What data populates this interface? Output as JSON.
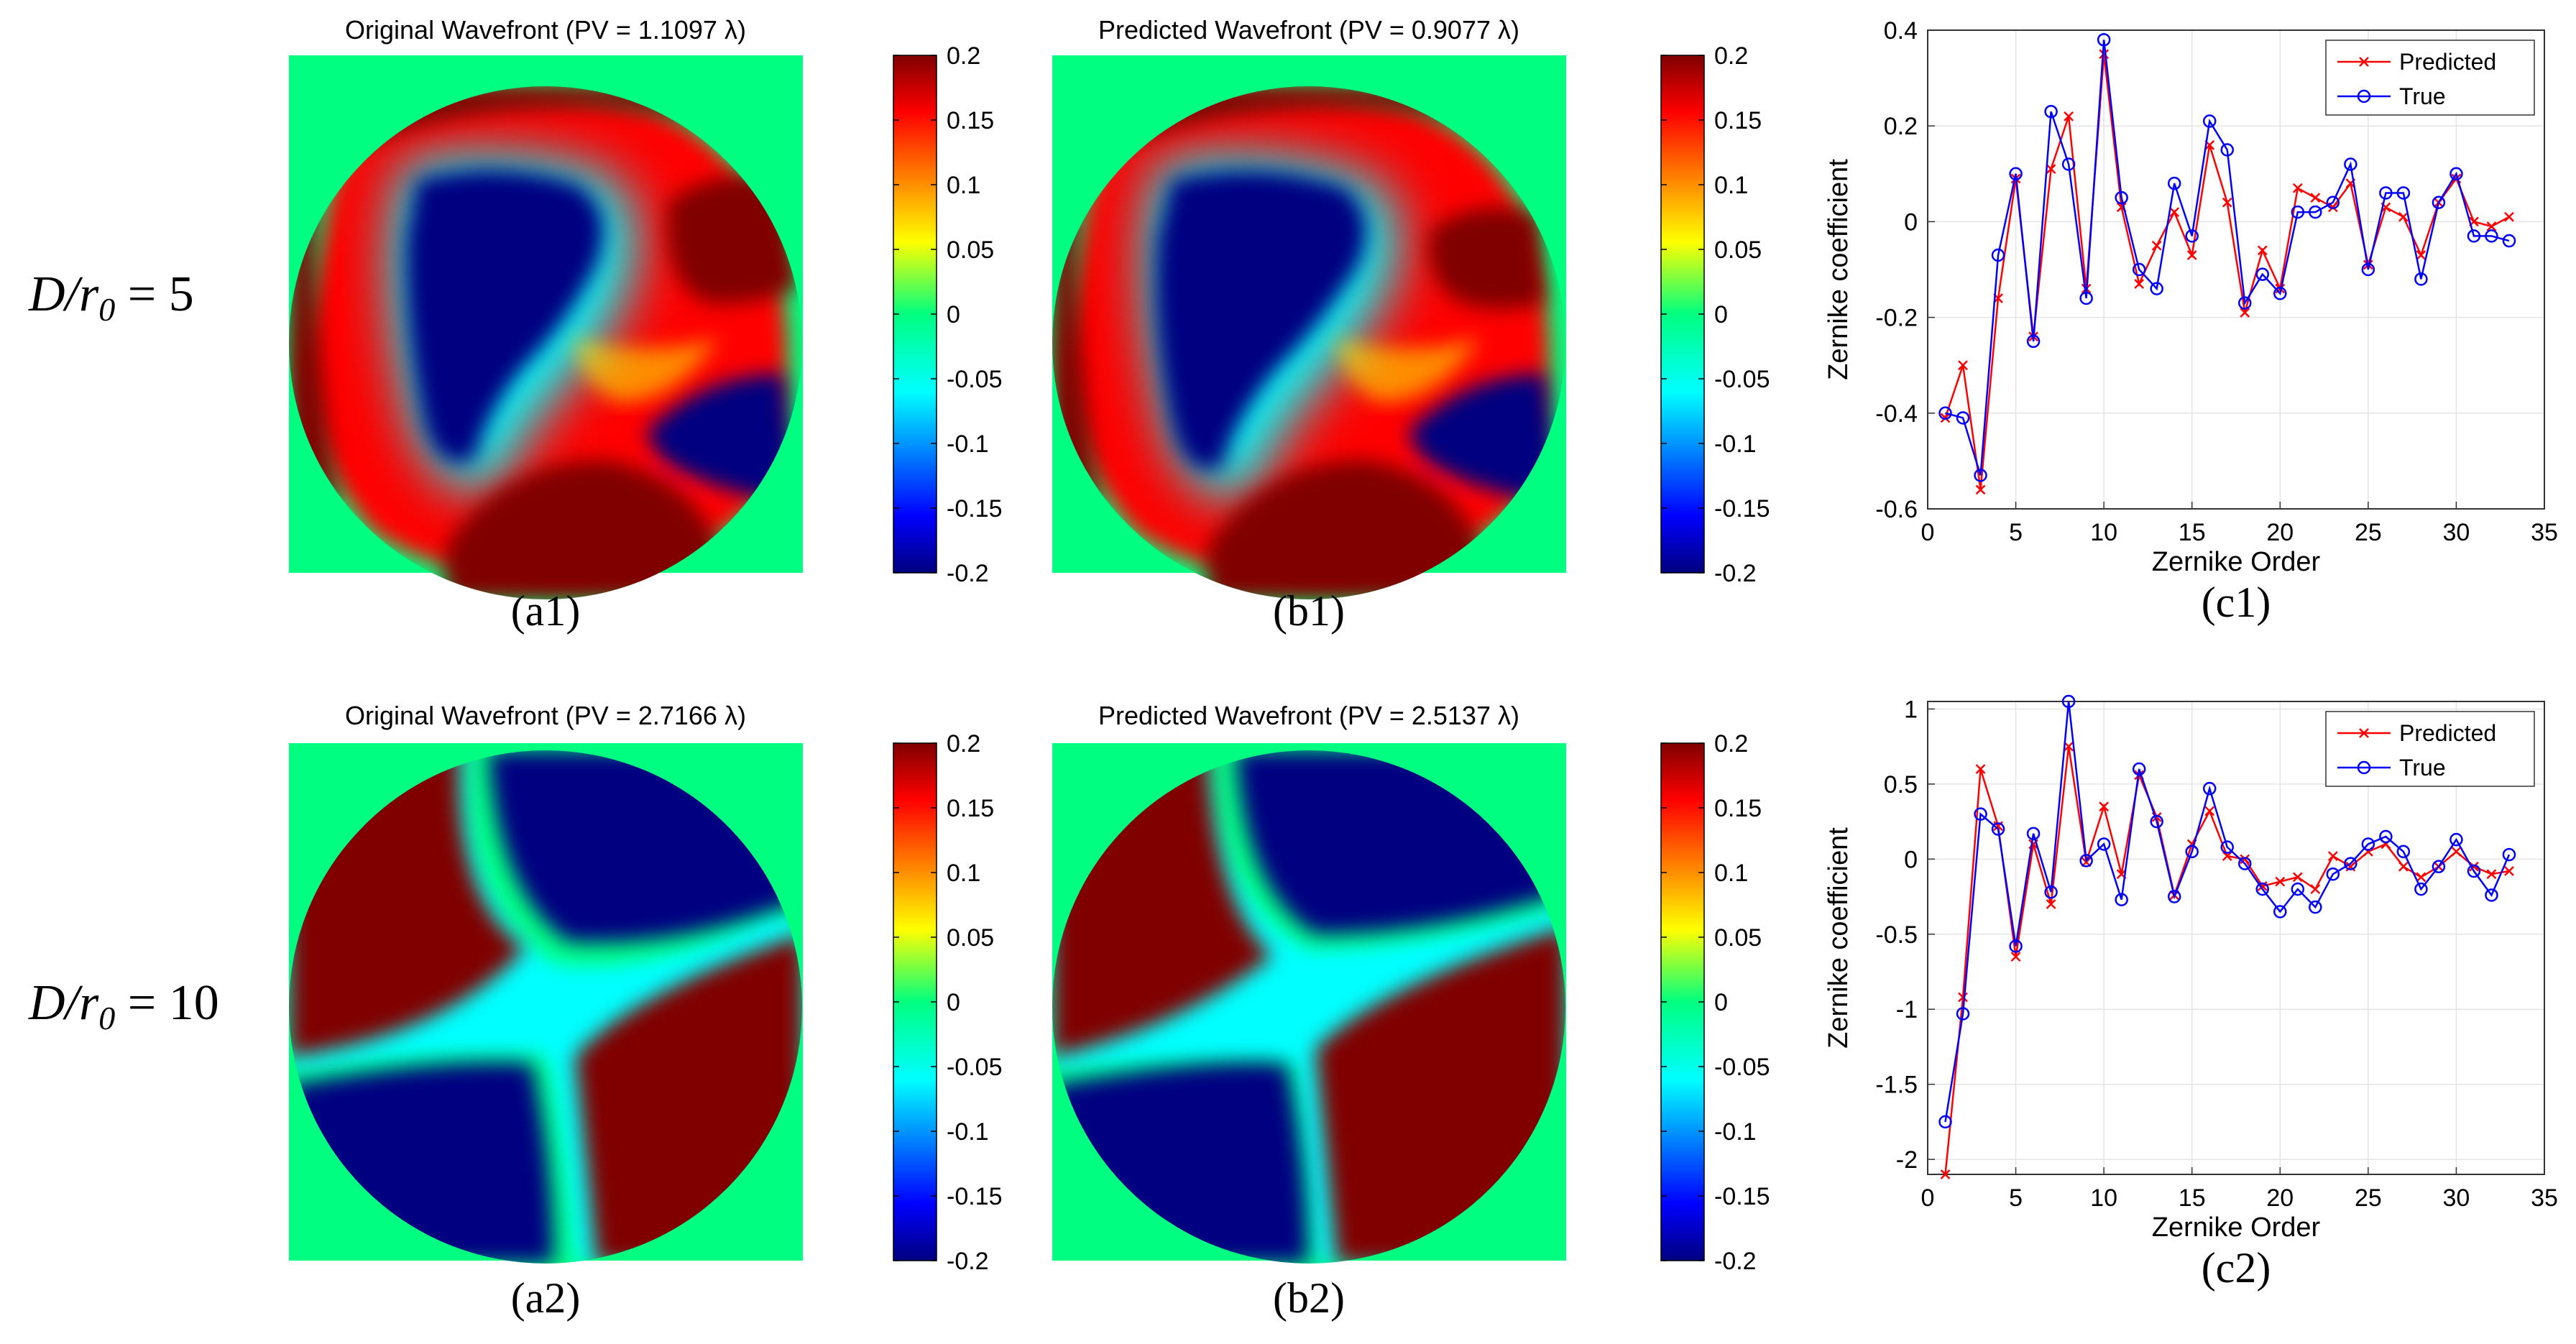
{
  "colors": {
    "predicted": "#ff0000",
    "true": "#0000ff",
    "pupil_background": "#00ff80",
    "colormap": "jet"
  },
  "row_labels": [
    {
      "prefix": "D/",
      "var": "r",
      "sub": "0",
      "suffix": " = 5"
    },
    {
      "prefix": "D/",
      "var": "r",
      "sub": "0",
      "suffix": " = 10"
    }
  ],
  "wavefront_panels": [
    {
      "id": "a1",
      "title": "Original Wavefront (PV = 1.1097 λ)",
      "caption": "(a1)"
    },
    {
      "id": "b1",
      "title": "Predicted Wavefront (PV = 0.9077 λ)",
      "caption": "(b1)"
    },
    {
      "id": "a2",
      "title": "Original Wavefront (PV = 2.7166 λ)",
      "caption": "(a2)"
    },
    {
      "id": "b2",
      "title": "Predicted Wavefront (PV = 2.5137 λ)",
      "caption": "(b2)"
    }
  ],
  "colorbar": {
    "ticks": [
      "0.2",
      "0.15",
      "0.1",
      "0.05",
      "0",
      "-0.05",
      "-0.1",
      "-0.15",
      "-0.2"
    ],
    "range": [
      -0.2,
      0.2
    ]
  },
  "chart_data": [
    {
      "id": "c1",
      "type": "line",
      "caption": "(c1)",
      "xlabel": "Zernike Order",
      "ylabel": "Zernike coefficient",
      "xlim": [
        0,
        35
      ],
      "ylim": [
        -0.6,
        0.4
      ],
      "xticks": [
        "0",
        "5",
        "10",
        "15",
        "20",
        "25",
        "30",
        "35"
      ],
      "yticks": [
        "0.4",
        "0.2",
        "0",
        "-0.2",
        "-0.4",
        "-0.6"
      ],
      "grid": true,
      "legend": "top-right",
      "x": [
        1,
        2,
        3,
        4,
        5,
        6,
        7,
        8,
        9,
        10,
        11,
        12,
        13,
        14,
        15,
        16,
        17,
        18,
        19,
        20,
        21,
        22,
        23,
        24,
        25,
        26,
        27,
        28,
        29,
        30,
        31,
        32,
        33
      ],
      "series": [
        {
          "name": "Predicted",
          "marker": "x",
          "values": [
            -0.41,
            -0.3,
            -0.56,
            -0.16,
            0.09,
            -0.24,
            0.11,
            0.22,
            -0.14,
            0.35,
            0.03,
            -0.13,
            -0.05,
            0.02,
            -0.07,
            0.16,
            0.04,
            -0.19,
            -0.06,
            -0.14,
            0.07,
            0.05,
            0.03,
            0.08,
            -0.09,
            0.03,
            0.01,
            -0.07,
            0.04,
            0.09,
            0.0,
            -0.01,
            0.01
          ]
        },
        {
          "name": "True",
          "marker": "o",
          "values": [
            -0.4,
            -0.41,
            -0.53,
            -0.07,
            0.1,
            -0.25,
            0.23,
            0.12,
            -0.16,
            0.38,
            0.05,
            -0.1,
            -0.14,
            0.08,
            -0.03,
            0.21,
            0.15,
            -0.17,
            -0.11,
            -0.15,
            0.02,
            0.02,
            0.04,
            0.12,
            -0.1,
            0.06,
            0.06,
            -0.12,
            0.04,
            0.1,
            -0.03,
            -0.03,
            -0.04
          ]
        }
      ]
    },
    {
      "id": "c2",
      "type": "line",
      "caption": "(c2)",
      "xlabel": "Zernike Order",
      "ylabel": "Zernike coefficient",
      "xlim": [
        0,
        35
      ],
      "ylim": [
        -2.1,
        1.05
      ],
      "xticks": [
        "0",
        "5",
        "10",
        "15",
        "20",
        "25",
        "30",
        "35"
      ],
      "yticks": [
        "1",
        "0.5",
        "0",
        "-0.5",
        "-1",
        "-1.5",
        "-2"
      ],
      "grid": true,
      "legend": "top-right",
      "x": [
        1,
        2,
        3,
        4,
        5,
        6,
        7,
        8,
        9,
        10,
        11,
        12,
        13,
        14,
        15,
        16,
        17,
        18,
        19,
        20,
        21,
        22,
        23,
        24,
        25,
        26,
        27,
        28,
        29,
        30,
        31,
        32,
        33
      ],
      "series": [
        {
          "name": "Predicted",
          "marker": "x",
          "values": [
            -2.1,
            -0.92,
            0.6,
            0.22,
            -0.65,
            0.1,
            -0.3,
            0.75,
            -0.02,
            0.35,
            -0.1,
            0.56,
            0.28,
            -0.24,
            0.1,
            0.32,
            0.02,
            0.0,
            -0.18,
            -0.15,
            -0.12,
            -0.2,
            0.02,
            -0.05,
            0.05,
            0.1,
            -0.05,
            -0.12,
            -0.05,
            0.05,
            -0.05,
            -0.1,
            -0.08
          ]
        },
        {
          "name": "True",
          "marker": "o",
          "values": [
            -1.75,
            -1.03,
            0.3,
            0.2,
            -0.58,
            0.17,
            -0.22,
            1.05,
            -0.01,
            0.1,
            -0.27,
            0.6,
            0.25,
            -0.25,
            0.05,
            0.47,
            0.08,
            -0.03,
            -0.2,
            -0.35,
            -0.2,
            -0.32,
            -0.1,
            -0.03,
            0.1,
            0.15,
            0.05,
            -0.2,
            -0.05,
            0.13,
            -0.08,
            -0.24,
            0.03
          ]
        }
      ]
    }
  ]
}
